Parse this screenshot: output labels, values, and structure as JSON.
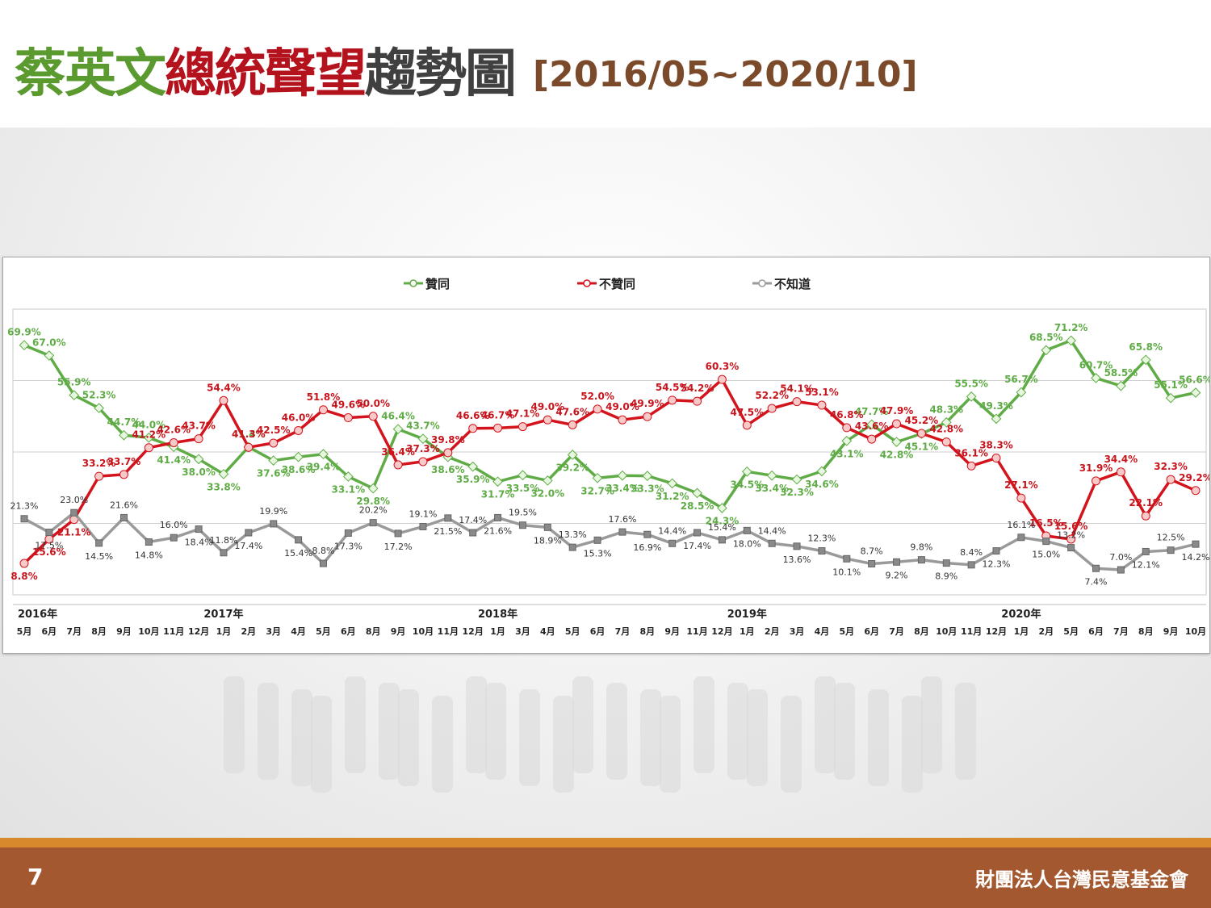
{
  "slide": {
    "title_part1": "蔡英文",
    "title_part2": "總統聲望",
    "title_part3": "趨勢圖",
    "title_range": "[2016/05~2020/10]",
    "page_number": "7",
    "organization": "財團法人台灣民意基金會"
  },
  "colors": {
    "title_green": "#5a9a2e",
    "title_red": "#b4121c",
    "title_gray": "#404040",
    "title_brown": "#7a4a2a",
    "approve": "#5fac46",
    "disapprove": "#d4141c",
    "unknown": "#9a9a9a",
    "footer": "#a4582f",
    "footer_stripe": "#d8892c"
  },
  "chart_data": {
    "type": "line",
    "categories": [
      "5月",
      "6月",
      "7月",
      "8月",
      "9月",
      "10月",
      "11月",
      "12月",
      "1月",
      "2月",
      "3月",
      "4月",
      "5月",
      "6月",
      "8月",
      "9月",
      "10月",
      "11月",
      "12月",
      "1月",
      "3月",
      "4月",
      "5月",
      "6月",
      "7月",
      "8月",
      "9月",
      "11月",
      "12月",
      "1月",
      "2月",
      "3月",
      "4月",
      "5月",
      "6月",
      "7月",
      "8月",
      "10月",
      "11月",
      "12月",
      "1月",
      "2月",
      "5月",
      "6月",
      "7月",
      "8月",
      "9月",
      "10月"
    ],
    "years": [
      {
        "label": "2016年",
        "index": 0
      },
      {
        "label": "2017年",
        "index": 8
      },
      {
        "label": "2018年",
        "index": 19
      },
      {
        "label": "2019年",
        "index": 29
      },
      {
        "label": "2020年",
        "index": 40
      }
    ],
    "legend_position": "top-center",
    "ylim": [
      0,
      80
    ],
    "grid": "horizontal",
    "series": [
      {
        "name": "贊同",
        "color": "#5fac46",
        "values": [
          69.9,
          67.0,
          55.9,
          52.3,
          44.7,
          44.0,
          41.4,
          38.0,
          33.8,
          41.4,
          37.6,
          38.6,
          39.4,
          33.1,
          29.8,
          46.4,
          43.7,
          38.6,
          35.9,
          31.7,
          33.5,
          32.0,
          39.2,
          32.7,
          33.4,
          33.3,
          31.2,
          28.5,
          24.3,
          34.5,
          33.4,
          32.3,
          34.6,
          43.1,
          47.7,
          42.8,
          45.1,
          48.3,
          55.5,
          49.3,
          56.7,
          68.5,
          71.2,
          60.7,
          58.5,
          65.8,
          55.1,
          56.6
        ]
      },
      {
        "name": "不贊同",
        "color": "#d4141c",
        "values": [
          8.8,
          15.6,
          21.1,
          33.2,
          33.7,
          41.2,
          42.6,
          43.7,
          54.4,
          41.3,
          42.5,
          46.0,
          51.8,
          49.6,
          50.0,
          36.4,
          37.3,
          39.8,
          46.6,
          46.7,
          47.1,
          49.0,
          47.6,
          52.0,
          49.0,
          49.9,
          54.5,
          54.2,
          60.3,
          47.5,
          52.2,
          54.1,
          53.1,
          46.8,
          43.6,
          47.9,
          45.2,
          42.8,
          36.1,
          38.3,
          27.1,
          16.5,
          15.6,
          31.9,
          34.4,
          22.1,
          32.3,
          29.2
        ]
      },
      {
        "name": "不知道",
        "color": "#9a9a9a",
        "values": [
          21.3,
          17.5,
          23.0,
          14.5,
          21.6,
          14.8,
          16.0,
          18.4,
          11.8,
          17.4,
          19.9,
          15.4,
          8.8,
          17.3,
          20.2,
          17.2,
          19.1,
          21.5,
          17.4,
          21.6,
          19.5,
          18.9,
          13.3,
          15.3,
          17.6,
          16.9,
          14.4,
          17.4,
          15.4,
          18.0,
          14.4,
          13.6,
          12.3,
          10.1,
          8.7,
          9.2,
          9.8,
          8.9,
          8.4,
          12.3,
          16.1,
          15.0,
          13.2,
          7.4,
          7.0,
          12.1,
          12.5,
          14.2
        ]
      }
    ]
  }
}
